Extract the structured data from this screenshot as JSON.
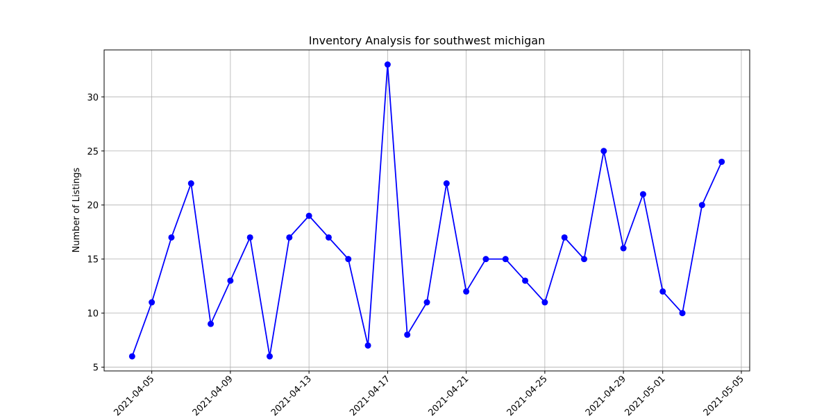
{
  "chart_data": {
    "type": "line",
    "title": "Inventory Analysis for southwest michigan",
    "xlabel": "",
    "ylabel": "Number of Listings",
    "grid": true,
    "line_color": "#0000ff",
    "marker": "circle",
    "x": [
      "2021-04-04",
      "2021-04-05",
      "2021-04-06",
      "2021-04-07",
      "2021-04-08",
      "2021-04-09",
      "2021-04-10",
      "2021-04-11",
      "2021-04-12",
      "2021-04-13",
      "2021-04-14",
      "2021-04-15",
      "2021-04-16",
      "2021-04-17",
      "2021-04-18",
      "2021-04-19",
      "2021-04-20",
      "2021-04-21",
      "2021-04-22",
      "2021-04-23",
      "2021-04-24",
      "2021-04-25",
      "2021-04-26",
      "2021-04-27",
      "2021-04-28",
      "2021-04-29",
      "2021-04-30",
      "2021-05-01",
      "2021-05-02",
      "2021-05-03",
      "2021-05-04"
    ],
    "y": [
      6,
      11,
      17,
      22,
      9,
      13,
      17,
      6,
      17,
      19,
      17,
      15,
      7,
      33,
      8,
      11,
      22,
      12,
      15,
      15,
      13,
      11,
      17,
      15,
      25,
      16,
      21,
      12,
      10,
      20,
      24
    ],
    "xticks": [
      "2021-04-05",
      "2021-04-09",
      "2021-04-13",
      "2021-04-17",
      "2021-04-21",
      "2021-04-25",
      "2021-04-29",
      "2021-05-01",
      "2021-05-05"
    ],
    "yticks": [
      5,
      10,
      15,
      20,
      25,
      30
    ],
    "xlim": [
      "2021-04-02",
      "2021-05-05"
    ],
    "ylim": [
      4.65,
      34.35
    ]
  }
}
